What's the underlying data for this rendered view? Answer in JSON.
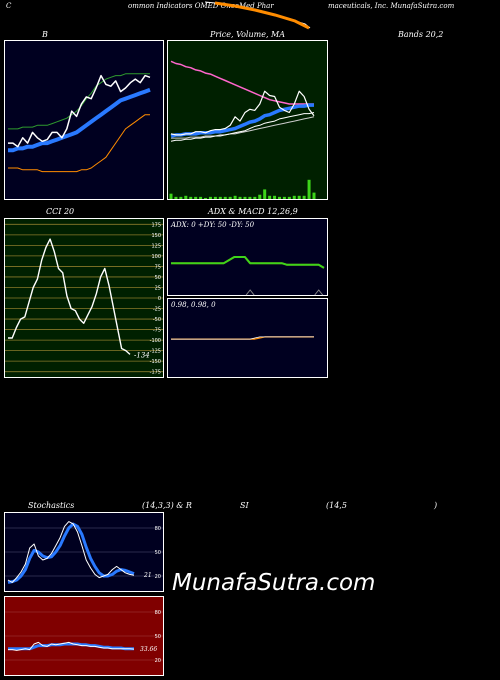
{
  "header": {
    "left": "C",
    "center1": "ommon  Indicators OMED OncoMed Phar",
    "center2": "maceuticals, Inc. MunafaSutra.com"
  },
  "panels": {
    "bb_title": "B",
    "price_title": "Price, Volume, MA",
    "price_title2": "Bands 20,2",
    "cci_title": "CCI 20",
    "adx_title": "ADX  & MACD 12,26,9",
    "adx_readout": "ADX: 0  +DY: 50  -DY: 50",
    "macd_readout": "0.98,  0.98,  0",
    "cci_last": "-134",
    "stoch_title": "Stochastics",
    "stoch_params": "(14,3,3) & R",
    "rsi_title": "SI",
    "rsi_params": "(14,5",
    "rsi_close": ")",
    "stoch_last": "21",
    "rsi_last": "33.66"
  },
  "watermark": "MunafaSutra.com",
  "colors": {
    "bb_bg": "#000020",
    "price_bg": "#002000",
    "cci_bg": "#002000",
    "adx_bg": "#000020",
    "stoch_bg": "#000020",
    "rsi_bg": "#800000",
    "ma_blue": "#2979ff",
    "orange": "#ff8c00",
    "green": "#3dd41a"
  },
  "chart_data": [
    {
      "type": "line",
      "name": "bollinger-bands",
      "x": [
        1,
        2,
        3,
        4,
        5,
        6,
        7,
        8,
        9,
        10,
        11,
        12,
        13,
        14,
        15,
        16,
        17,
        18,
        19,
        20,
        21,
        22,
        23,
        24,
        25,
        26,
        27,
        28,
        29,
        30
      ],
      "series": [
        {
          "name": "price",
          "values": [
            0.52,
            0.52,
            0.5,
            0.55,
            0.52,
            0.58,
            0.55,
            0.53,
            0.54,
            0.58,
            0.58,
            0.55,
            0.6,
            0.7,
            0.67,
            0.74,
            0.78,
            0.77,
            0.83,
            0.9,
            0.85,
            0.84,
            0.87,
            0.81,
            0.83,
            0.86,
            0.88,
            0.86,
            0.9,
            0.89
          ]
        },
        {
          "name": "ma",
          "values": [
            0.48,
            0.48,
            0.49,
            0.49,
            0.5,
            0.5,
            0.51,
            0.52,
            0.52,
            0.53,
            0.54,
            0.55,
            0.56,
            0.57,
            0.58,
            0.6,
            0.62,
            0.64,
            0.66,
            0.68,
            0.7,
            0.72,
            0.74,
            0.76,
            0.77,
            0.78,
            0.79,
            0.8,
            0.81,
            0.82
          ]
        },
        {
          "name": "upper",
          "values": [
            0.6,
            0.6,
            0.6,
            0.61,
            0.61,
            0.61,
            0.62,
            0.62,
            0.62,
            0.63,
            0.64,
            0.65,
            0.66,
            0.68,
            0.7,
            0.73,
            0.77,
            0.8,
            0.84,
            0.86,
            0.88,
            0.89,
            0.9,
            0.9,
            0.91,
            0.91,
            0.91,
            0.91,
            0.91,
            0.91
          ]
        },
        {
          "name": "lower",
          "values": [
            0.38,
            0.38,
            0.38,
            0.37,
            0.37,
            0.37,
            0.37,
            0.36,
            0.36,
            0.36,
            0.36,
            0.36,
            0.36,
            0.36,
            0.36,
            0.37,
            0.37,
            0.38,
            0.4,
            0.42,
            0.44,
            0.48,
            0.52,
            0.56,
            0.6,
            0.62,
            0.64,
            0.66,
            0.68,
            0.68
          ]
        }
      ],
      "ylim": [
        0.2,
        1.1
      ]
    },
    {
      "type": "line",
      "name": "price-volume-ma",
      "x": [
        1,
        2,
        3,
        4,
        5,
        6,
        7,
        8,
        9,
        10,
        11,
        12,
        13,
        14,
        15,
        16,
        17,
        18,
        19,
        20,
        21,
        22,
        23,
        24,
        25,
        26,
        27,
        28,
        29,
        30
      ],
      "series": [
        {
          "name": "price",
          "values": [
            0.62,
            0.61,
            0.61,
            0.62,
            0.62,
            0.64,
            0.64,
            0.63,
            0.65,
            0.66,
            0.66,
            0.67,
            0.7,
            0.78,
            0.74,
            0.82,
            0.85,
            0.84,
            0.9,
            1.02,
            0.98,
            0.97,
            0.87,
            0.84,
            0.82,
            0.9,
            1.02,
            0.97,
            0.85,
            0.79
          ]
        },
        {
          "name": "ma-short",
          "values": [
            0.6,
            0.61,
            0.61,
            0.62,
            0.62,
            0.62,
            0.63,
            0.63,
            0.63,
            0.64,
            0.64,
            0.65,
            0.66,
            0.67,
            0.69,
            0.71,
            0.73,
            0.74,
            0.76,
            0.79,
            0.8,
            0.82,
            0.84,
            0.85,
            0.86,
            0.87,
            0.88,
            0.88,
            0.89,
            0.89
          ]
        },
        {
          "name": "ma-mid",
          "values": [
            0.55,
            0.56,
            0.56,
            0.57,
            0.57,
            0.58,
            0.58,
            0.59,
            0.59,
            0.6,
            0.6,
            0.61,
            0.62,
            0.63,
            0.64,
            0.65,
            0.67,
            0.69,
            0.7,
            0.72,
            0.73,
            0.74,
            0.76,
            0.77,
            0.78,
            0.79,
            0.8,
            0.81,
            0.81,
            0.82
          ]
        },
        {
          "name": "ma-long",
          "values": [
            0.58,
            0.58,
            0.58,
            0.58,
            0.59,
            0.59,
            0.59,
            0.6,
            0.6,
            0.6,
            0.61,
            0.61,
            0.62,
            0.62,
            0.63,
            0.64,
            0.65,
            0.66,
            0.67,
            0.68,
            0.69,
            0.7,
            0.71,
            0.72,
            0.73,
            0.74,
            0.75,
            0.76,
            0.77,
            0.78
          ]
        },
        {
          "name": "ma-200",
          "values": [
            1.3,
            1.28,
            1.27,
            1.25,
            1.24,
            1.22,
            1.21,
            1.19,
            1.18,
            1.16,
            1.14,
            1.12,
            1.1,
            1.08,
            1.06,
            1.04,
            1.02,
            1.0,
            0.98,
            0.96,
            0.94,
            0.93,
            0.92,
            0.91,
            0.9,
            0.9,
            0.9,
            0.9,
            0.9,
            0.9
          ]
        },
        {
          "name": "volume",
          "values": [
            0.05,
            0.02,
            0.02,
            0.03,
            0.02,
            0.02,
            0.02,
            0.01,
            0.02,
            0.02,
            0.02,
            0.02,
            0.02,
            0.03,
            0.02,
            0.02,
            0.02,
            0.02,
            0.04,
            0.09,
            0.03,
            0.03,
            0.02,
            0.02,
            0.02,
            0.03,
            0.03,
            0.03,
            0.18,
            0.06
          ]
        }
      ],
      "ylim": [
        0.0,
        1.5
      ]
    },
    {
      "type": "line",
      "name": "cci",
      "y_ticks": [
        175,
        150,
        125,
        100,
        75,
        50,
        25,
        0,
        -25,
        -50,
        -75,
        -100,
        -125,
        -150,
        -175
      ],
      "x": [
        1,
        2,
        3,
        4,
        5,
        6,
        7,
        8,
        9,
        10,
        11,
        12,
        13,
        14,
        15,
        16,
        17,
        18,
        19,
        20,
        21,
        22,
        23,
        24,
        25,
        26,
        27,
        28,
        29,
        30
      ],
      "series": [
        {
          "name": "cci",
          "values": [
            -95,
            -95,
            -70,
            -50,
            -45,
            -10,
            25,
            45,
            90,
            120,
            140,
            110,
            70,
            60,
            5,
            -25,
            -30,
            -50,
            -60,
            -40,
            -20,
            10,
            50,
            70,
            30,
            -20,
            -70,
            -120,
            -125,
            -134
          ]
        }
      ],
      "ylim": [
        -190,
        190
      ]
    },
    {
      "type": "line",
      "name": "adx",
      "x": [
        1,
        2,
        3,
        4,
        5,
        6,
        7,
        8,
        9,
        10,
        11,
        12,
        13,
        14,
        15,
        16,
        17,
        18,
        19,
        20,
        21,
        22,
        23,
        24,
        25,
        26,
        27,
        28,
        29,
        30
      ],
      "series": [
        {
          "name": "dx",
          "values": [
            0.42,
            0.42,
            0.42,
            0.42,
            0.42,
            0.42,
            0.42,
            0.42,
            0.42,
            0.42,
            0.42,
            0.46,
            0.5,
            0.5,
            0.5,
            0.42,
            0.42,
            0.42,
            0.42,
            0.42,
            0.42,
            0.42,
            0.4,
            0.4,
            0.4,
            0.4,
            0.4,
            0.4,
            0.4,
            0.36
          ]
        },
        {
          "name": "adx-marker",
          "values": [
            0.0,
            0.0,
            0.0,
            0.0,
            0.0,
            0.0,
            0.0,
            0.0,
            0.0,
            0.0,
            0.0,
            0.0,
            0.0,
            0.0,
            0.0,
            0.05,
            0.0,
            0.0,
            0.0,
            0.0,
            0.0,
            0.0,
            0.0,
            0.0,
            0.0,
            0.0,
            0.0,
            0.0,
            0.05,
            0.0
          ]
        }
      ],
      "ylim": [
        0,
        0.8
      ]
    },
    {
      "type": "line",
      "name": "macd",
      "x": [
        1,
        2,
        3,
        4,
        5,
        6,
        7,
        8,
        9,
        10,
        11,
        12,
        13,
        14,
        15,
        16,
        17,
        18,
        19,
        20,
        21,
        22,
        23,
        24,
        25,
        26,
        27,
        28,
        29,
        30
      ],
      "series": [
        {
          "name": "macd",
          "values": [
            0.97,
            0.97,
            0.97,
            0.97,
            0.97,
            0.97,
            0.97,
            0.97,
            0.97,
            0.97,
            0.97,
            0.97,
            0.97,
            0.97,
            0.97,
            0.97,
            0.97,
            0.975,
            0.98,
            0.98,
            0.98,
            0.98,
            0.98,
            0.98,
            0.98,
            0.98,
            0.98,
            0.98,
            0.98,
            0.98
          ]
        },
        {
          "name": "signal",
          "values": [
            0.97,
            0.97,
            0.97,
            0.97,
            0.97,
            0.97,
            0.97,
            0.97,
            0.97,
            0.97,
            0.97,
            0.97,
            0.97,
            0.97,
            0.97,
            0.97,
            0.97,
            0.97,
            0.975,
            0.98,
            0.98,
            0.98,
            0.98,
            0.98,
            0.98,
            0.98,
            0.98,
            0.98,
            0.98,
            0.98
          ]
        }
      ],
      "ylim": [
        0.8,
        1.15
      ]
    },
    {
      "type": "line",
      "name": "stochastics",
      "y_ticks": [
        80,
        50,
        20
      ],
      "x": [
        1,
        2,
        3,
        4,
        5,
        6,
        7,
        8,
        9,
        10,
        11,
        12,
        13,
        14,
        15,
        16,
        17,
        18,
        19,
        20,
        21,
        22,
        23,
        24,
        25,
        26,
        27,
        28,
        29,
        30
      ],
      "series": [
        {
          "name": "k",
          "values": [
            15,
            12,
            18,
            25,
            35,
            55,
            60,
            45,
            40,
            42,
            48,
            58,
            68,
            82,
            88,
            85,
            75,
            58,
            40,
            30,
            22,
            18,
            20,
            22,
            28,
            32,
            28,
            24,
            22,
            21
          ]
        },
        {
          "name": "d",
          "values": [
            12,
            13,
            15,
            20,
            28,
            42,
            52,
            50,
            45,
            43,
            44,
            50,
            58,
            70,
            80,
            85,
            82,
            72,
            56,
            42,
            32,
            24,
            20,
            20,
            22,
            26,
            28,
            27,
            25,
            23
          ]
        }
      ],
      "ylim": [
        0,
        100
      ]
    },
    {
      "type": "line",
      "name": "rsi",
      "y_ticks": [
        80,
        50,
        20
      ],
      "x": [
        1,
        2,
        3,
        4,
        5,
        6,
        7,
        8,
        9,
        10,
        11,
        12,
        13,
        14,
        15,
        16,
        17,
        18,
        19,
        20,
        21,
        22,
        23,
        24,
        25,
        26,
        27,
        28,
        29,
        30
      ],
      "series": [
        {
          "name": "rsi",
          "values": [
            33,
            33,
            32,
            33,
            34,
            33,
            40,
            42,
            38,
            37,
            40,
            39,
            40,
            41,
            42,
            40,
            39,
            38,
            38,
            37,
            37,
            36,
            35,
            35,
            34,
            34,
            34,
            34,
            34,
            33.66
          ]
        },
        {
          "name": "rsi-ma",
          "values": [
            34,
            34,
            34,
            34,
            34,
            34,
            36,
            38,
            38,
            38,
            39,
            39,
            39,
            40,
            40,
            40,
            40,
            39,
            39,
            38,
            38,
            37,
            36,
            36,
            35,
            35,
            35,
            34,
            34,
            34
          ]
        }
      ],
      "ylim": [
        0,
        100
      ]
    }
  ]
}
